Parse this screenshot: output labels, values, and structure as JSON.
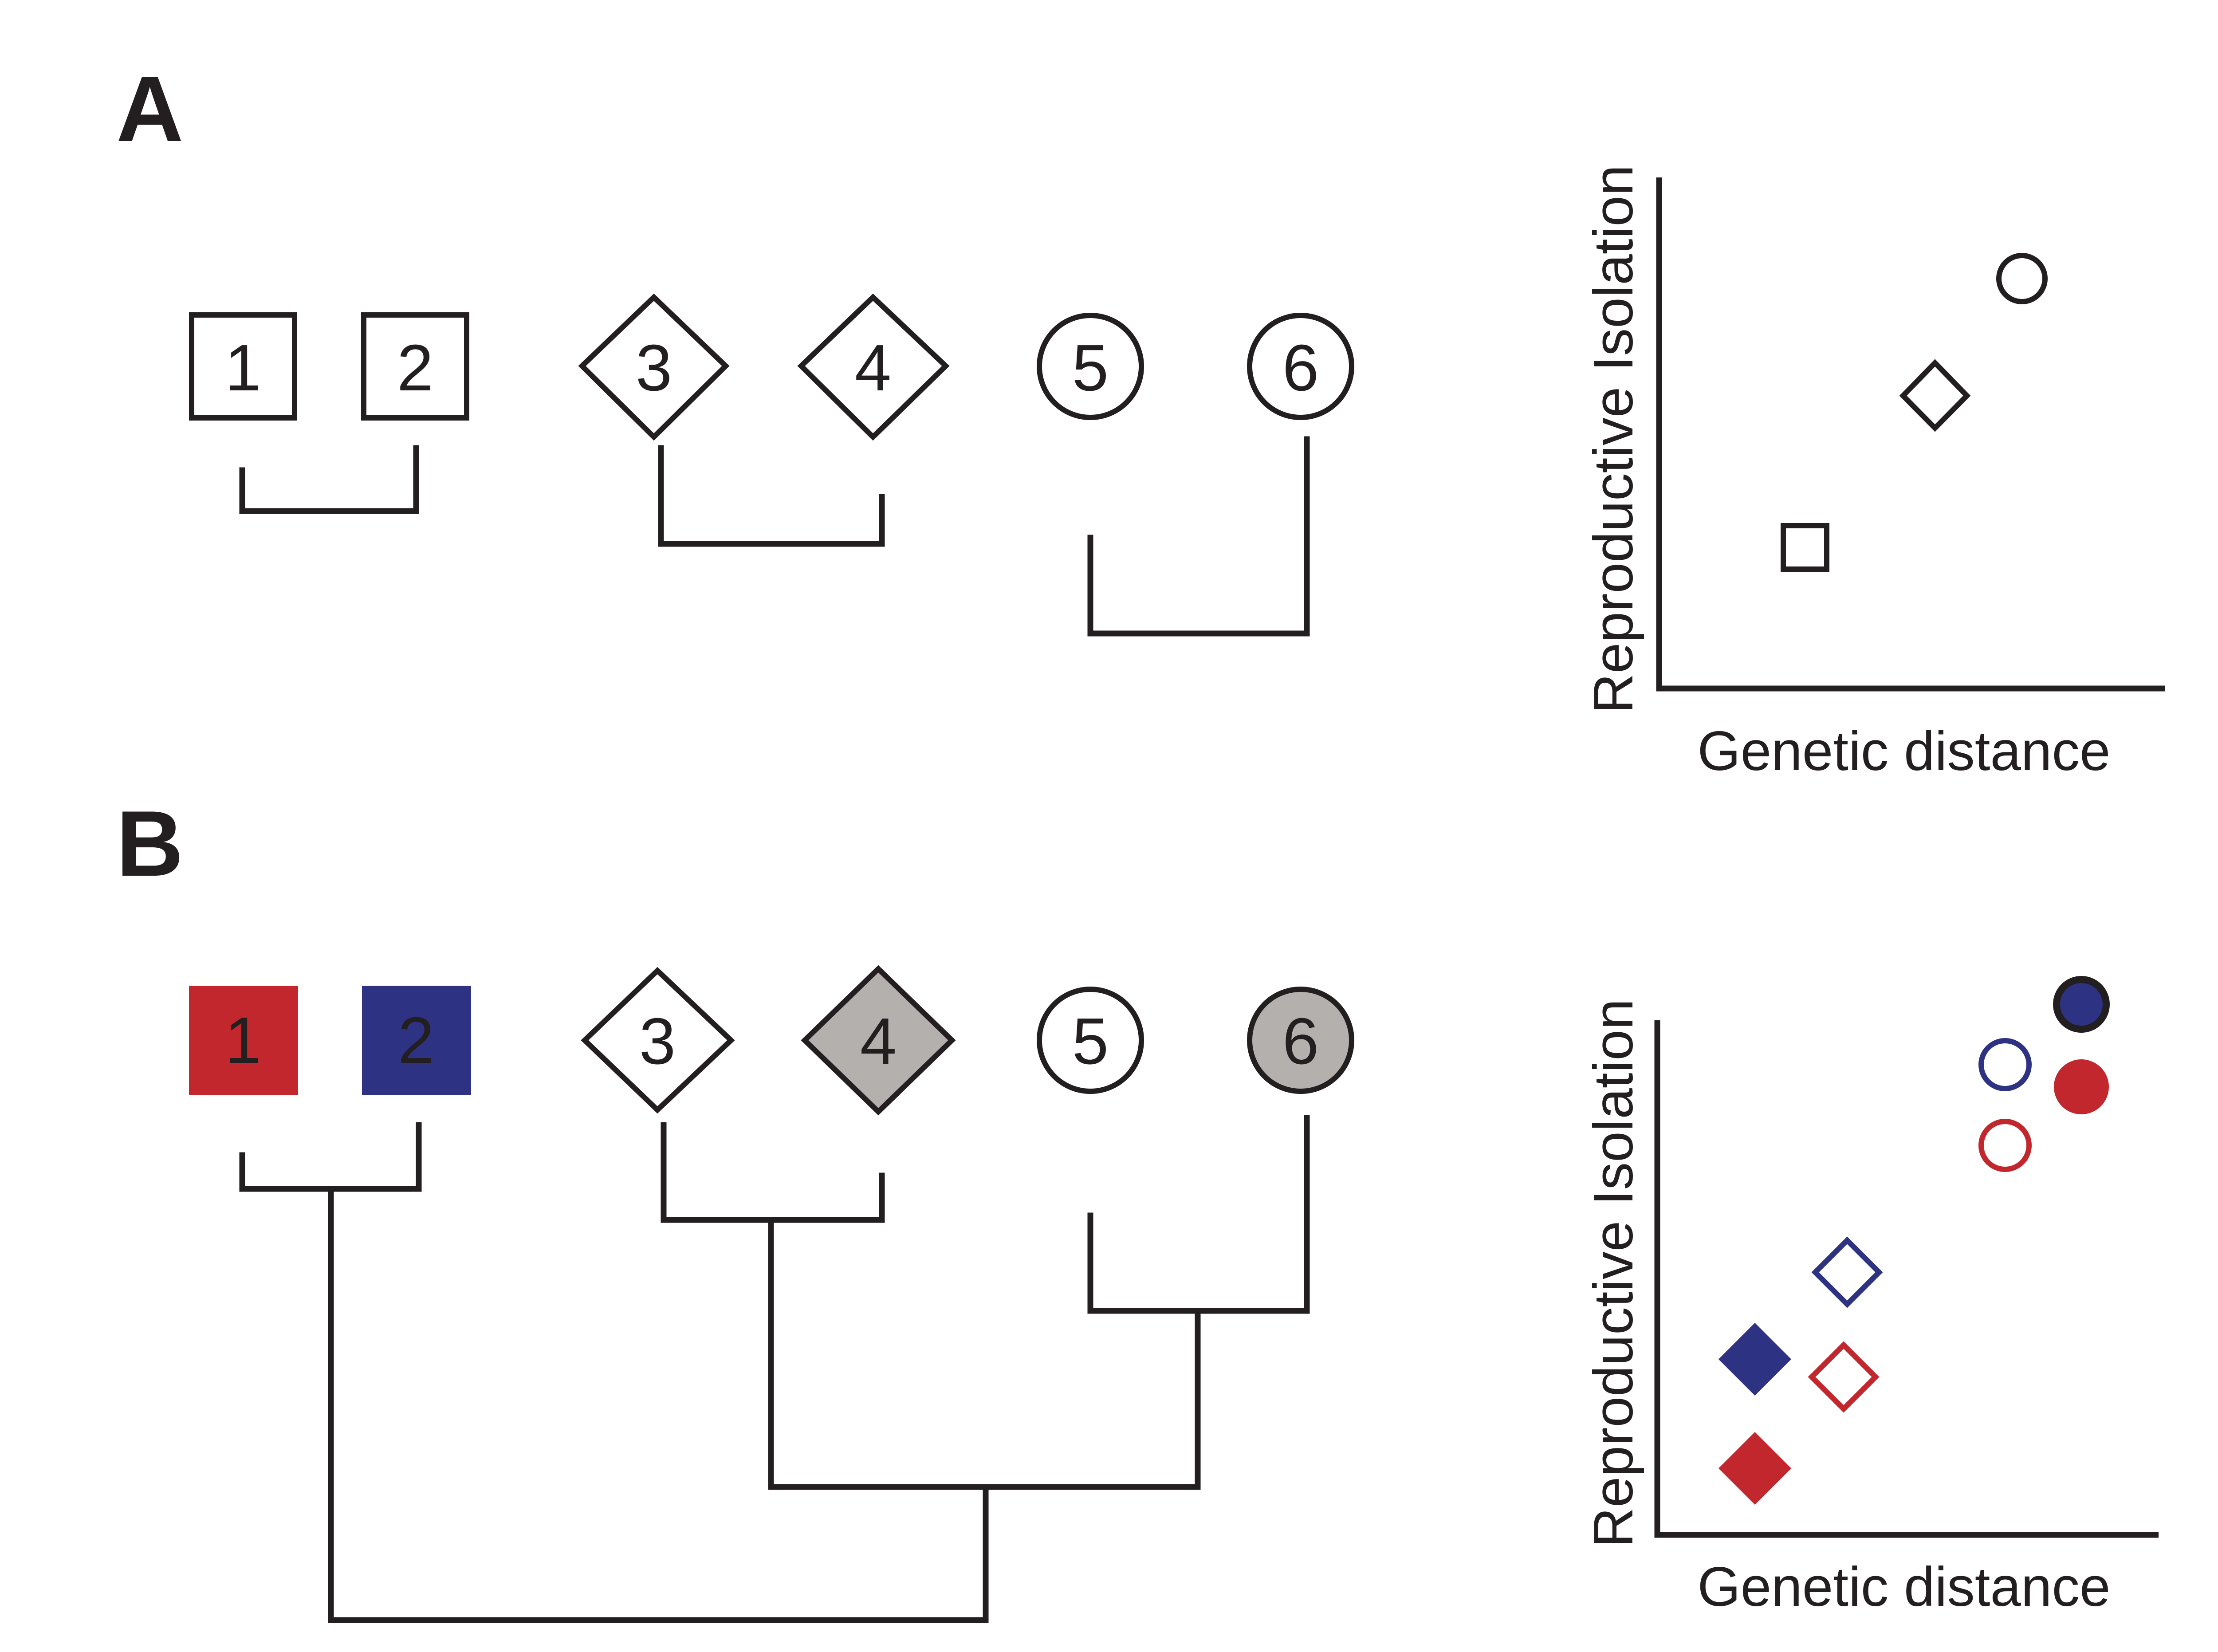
{
  "colors": {
    "ink": "#231f20",
    "red": "#c1272d",
    "blue": "#2e3282",
    "gray": "#b3b0ad",
    "white": "#ffffff"
  },
  "panel_a": {
    "label": "A",
    "taxa": [
      {
        "id": "1",
        "shape": "square",
        "fill": "white"
      },
      {
        "id": "2",
        "shape": "square",
        "fill": "white"
      },
      {
        "id": "3",
        "shape": "diamond",
        "fill": "white"
      },
      {
        "id": "4",
        "shape": "diamond",
        "fill": "white"
      },
      {
        "id": "5",
        "shape": "circle",
        "fill": "white"
      },
      {
        "id": "6",
        "shape": "circle",
        "fill": "white"
      }
    ],
    "plot": {
      "ylabel": "Reproductive Isolation",
      "xlabel": "Genetic distance",
      "markers": [
        {
          "shape": "square",
          "style": "open",
          "color": "ink"
        },
        {
          "shape": "diamond",
          "style": "open",
          "color": "ink"
        },
        {
          "shape": "circle",
          "style": "open",
          "color": "ink"
        }
      ]
    }
  },
  "panel_b": {
    "label": "B",
    "taxa": [
      {
        "id": "1",
        "shape": "square",
        "fill": "red"
      },
      {
        "id": "2",
        "shape": "square",
        "fill": "blue"
      },
      {
        "id": "3",
        "shape": "diamond",
        "fill": "white"
      },
      {
        "id": "4",
        "shape": "diamond",
        "fill": "gray"
      },
      {
        "id": "5",
        "shape": "circle",
        "fill": "white"
      },
      {
        "id": "6",
        "shape": "circle",
        "fill": "gray"
      }
    ],
    "plot": {
      "ylabel": "Reproductive Isolation",
      "xlabel": "Genetic distance",
      "markers": [
        {
          "shape": "circle",
          "style": "filled",
          "color": "blue"
        },
        {
          "shape": "circle",
          "style": "open",
          "color": "blue"
        },
        {
          "shape": "circle",
          "style": "filled",
          "color": "red"
        },
        {
          "shape": "circle",
          "style": "open",
          "color": "red"
        },
        {
          "shape": "diamond",
          "style": "open",
          "color": "blue"
        },
        {
          "shape": "diamond",
          "style": "filled",
          "color": "blue"
        },
        {
          "shape": "diamond",
          "style": "open",
          "color": "red"
        },
        {
          "shape": "diamond",
          "style": "filled",
          "color": "red"
        }
      ]
    }
  }
}
